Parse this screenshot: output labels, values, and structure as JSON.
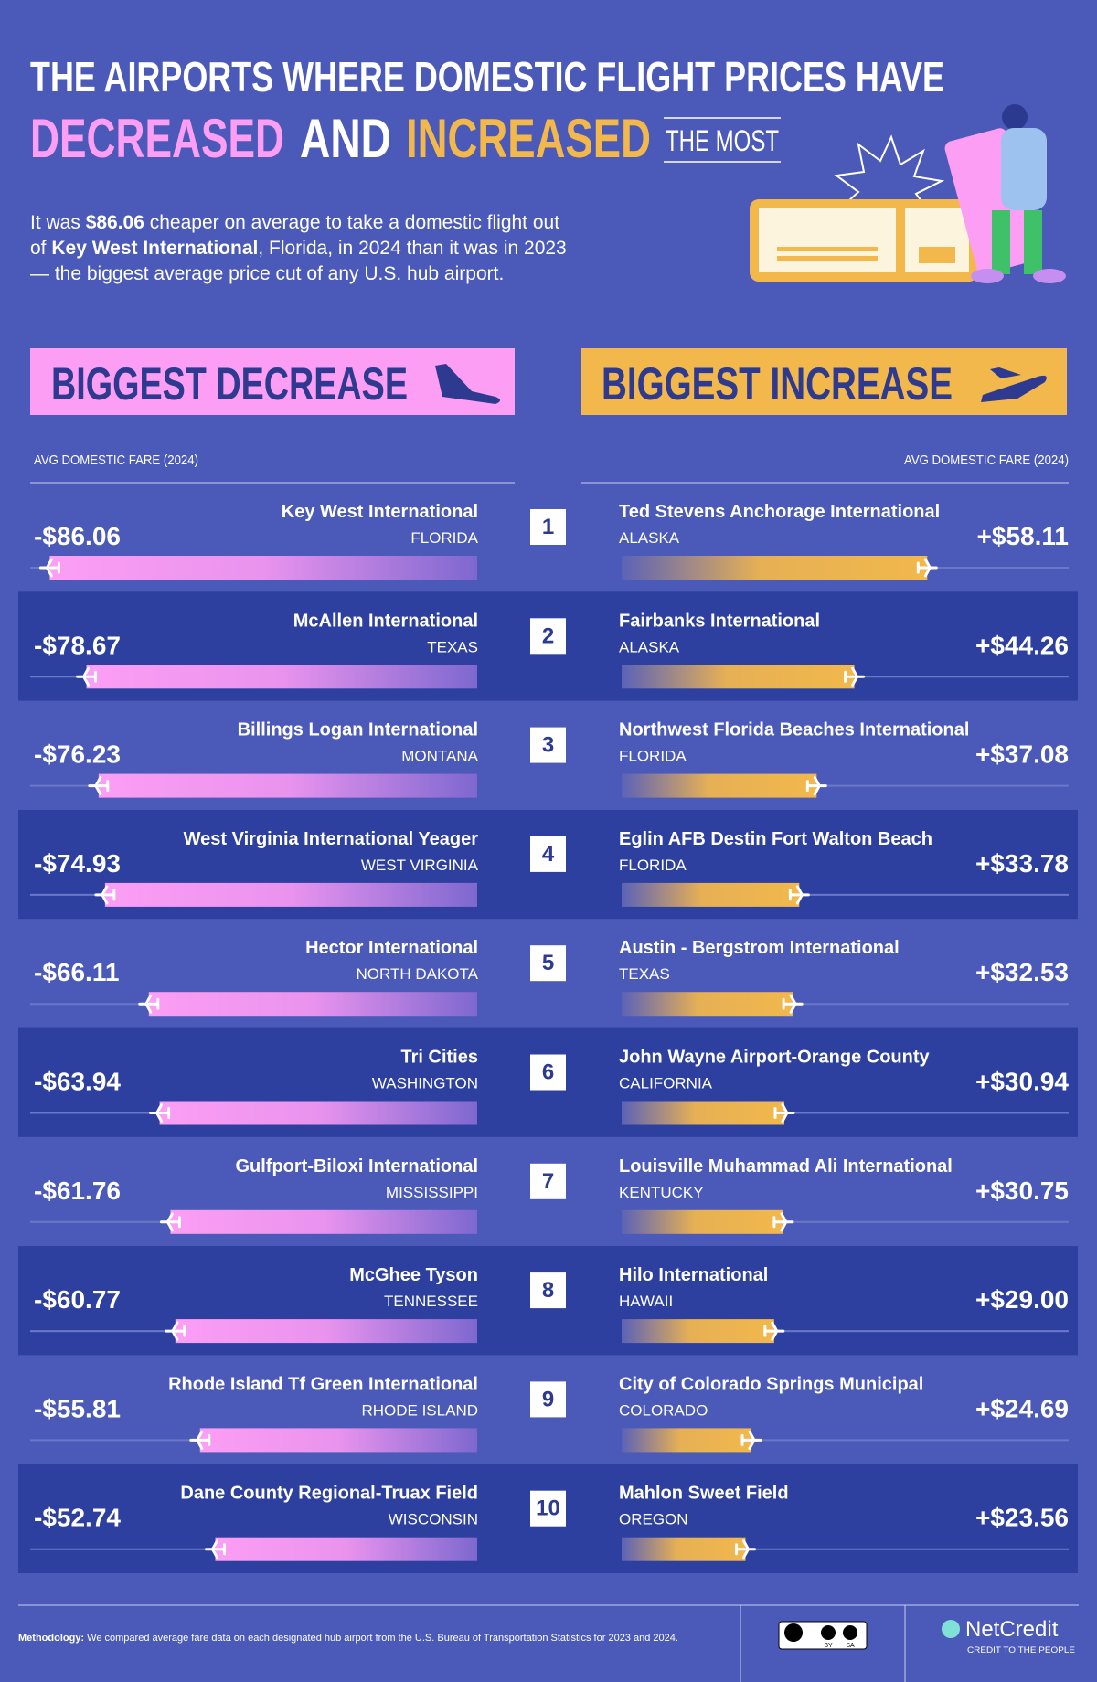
{
  "header": {
    "title_line1": "THE AIRPORTS WHERE DOMESTIC FLIGHT PRICES HAVE",
    "decreased": "DECREASED",
    "and": "AND",
    "increased": "INCREASED",
    "the_most": "THE MOST",
    "intro": [
      [
        "It was ",
        "$86.06",
        " cheaper on average to take a domestic flight out"
      ],
      [
        "of ",
        "Key West International",
        ", Florida, in 2024 than it was in 2023"
      ],
      [
        "— the biggest average price cut of any U.S. hub airport."
      ]
    ]
  },
  "chart_data": [
    {
      "type": "bar",
      "orientation": "horizontal",
      "title": "BIGGEST DECREASE",
      "axis_label": "AVG DOMESTIC FARE (2024)",
      "categories": [
        "Key West International",
        "McAllen International",
        "Billings Logan International",
        "West Virginia International Yeager",
        "Hector International",
        "Tri Cities",
        "Gulfport-Biloxi International",
        "McGhee Tyson",
        "Rhode Island Tf Green International",
        "Dane County Regional-Truax Field"
      ],
      "states": [
        "FLORIDA",
        "TEXAS",
        "MONTANA",
        "WEST VIRGINIA",
        "NORTH DAKOTA",
        "WASHINGTON",
        "MISSISSIPPI",
        "TENNESSEE",
        "RHODE ISLAND",
        "WISCONSIN"
      ],
      "values": [
        -86.06,
        -78.67,
        -76.23,
        -74.93,
        -66.11,
        -63.94,
        -61.76,
        -60.77,
        -55.81,
        -52.74
      ],
      "value_labels": [
        "-$86.06",
        "-$78.67",
        "-$76.23",
        "-$74.93",
        "-$66.11",
        "-$63.94",
        "-$61.76",
        "-$60.77",
        "-$55.81",
        "-$52.74"
      ],
      "color": "#fc9ef4",
      "xlim": [
        -90,
        0
      ]
    },
    {
      "type": "bar",
      "orientation": "horizontal",
      "title": "BIGGEST INCREASE",
      "axis_label": "AVG DOMESTIC FARE (2024)",
      "categories": [
        "Ted Stevens Anchorage International",
        "Fairbanks International",
        "Northwest Florida Beaches International",
        "Eglin AFB Destin Fort Walton Beach",
        "Austin - Bergstrom International",
        "John Wayne Airport-Orange County",
        "Louisville Muhammad Ali International",
        "Hilo International",
        "City of Colorado Springs Municipal",
        "Mahlon Sweet Field"
      ],
      "states": [
        "ALASKA",
        "ALASKA",
        "FLORIDA",
        "FLORIDA",
        "TEXAS",
        "CALIFORNIA",
        "KENTUCKY",
        "HAWAII",
        "COLORADO",
        "OREGON"
      ],
      "values": [
        58.11,
        44.26,
        37.08,
        33.78,
        32.53,
        30.94,
        30.75,
        29.0,
        24.69,
        23.56
      ],
      "value_labels": [
        "+$58.11",
        "+$44.26",
        "+$37.08",
        "+$33.78",
        "+$32.53",
        "+$30.94",
        "+$30.75",
        "+$29.00",
        "+$24.69",
        "+$23.56"
      ],
      "color": "#f2b84c",
      "xlim": [
        0,
        85
      ]
    }
  ],
  "ranks": [
    1,
    2,
    3,
    4,
    5,
    6,
    7,
    8,
    9,
    10
  ],
  "footer": {
    "methodology_label": "Methodology:",
    "methodology": "We compared average fare data on each designated hub airport from the U.S. Bureau of Transportation Statistics for 2023 and 2024.",
    "license": [
      "BY",
      "SA"
    ],
    "brand": "NetCredit",
    "tagline": "CREDIT TO THE PEOPLE"
  }
}
